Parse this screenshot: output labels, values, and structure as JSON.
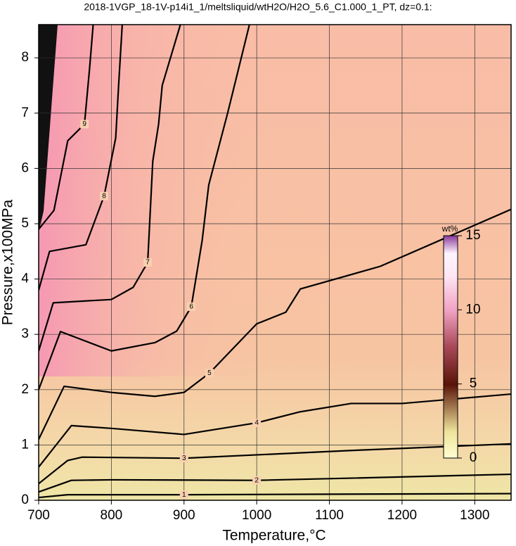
{
  "chart_data": {
    "type": "contour",
    "title": "2018-1VGP_18-1V-p14i1_1/meltsliquid/wtH2O/H2O_5.6_C1.000_1_PT, dz=0.1:",
    "x_label": "Temperature,°C",
    "y_label": "Pressure,x100MPa",
    "xlim": [
      700,
      1350
    ],
    "ylim": [
      0,
      8.6
    ],
    "xticks": [
      700,
      800,
      900,
      1000,
      1100,
      1200,
      1300
    ],
    "yticks": [
      0,
      1,
      2,
      3,
      4,
      5,
      6,
      7,
      8
    ],
    "grid": true,
    "line_color": "#000000",
    "contours": [
      {
        "level": 1,
        "T": [
          700,
          740,
          900,
          1100,
          1350
        ],
        "P": [
          0.05,
          0.1,
          0.1,
          0.11,
          0.12
        ]
      },
      {
        "level": 2,
        "T": [
          700,
          745,
          800,
          1000,
          1130,
          1350
        ],
        "P": [
          0.15,
          0.36,
          0.37,
          0.36,
          0.4,
          0.47
        ]
      },
      {
        "level": 3,
        "T": [
          700,
          740,
          760,
          900,
          1130,
          1350
        ],
        "P": [
          0.3,
          0.72,
          0.78,
          0.76,
          0.9,
          1.02
        ]
      },
      {
        "level": 4,
        "T": [
          700,
          745,
          800,
          900,
          1000,
          1060,
          1130,
          1200,
          1350
        ],
        "P": [
          0.6,
          1.35,
          1.3,
          1.19,
          1.4,
          1.6,
          1.75,
          1.75,
          1.92
        ]
      },
      {
        "level": 5,
        "T": [
          700,
          735,
          800,
          860,
          900,
          935,
          1000,
          1040,
          1060,
          1170,
          1350
        ],
        "P": [
          1.1,
          2.06,
          1.95,
          1.88,
          1.95,
          2.3,
          3.19,
          3.4,
          3.82,
          4.23,
          5.26
        ]
      },
      {
        "level": 6,
        "T": [
          700,
          730,
          800,
          860,
          890,
          910,
          925,
          934,
          960,
          990
        ],
        "P": [
          2.0,
          3.05,
          2.7,
          2.85,
          3.06,
          3.5,
          4.7,
          5.7,
          7.0,
          8.6
        ]
      },
      {
        "level": 7,
        "T": [
          700,
          720,
          800,
          830,
          850,
          857,
          865,
          870,
          895
        ],
        "P": [
          2.7,
          3.57,
          3.63,
          3.85,
          4.3,
          6.13,
          6.8,
          7.5,
          8.6
        ]
      },
      {
        "level": 8,
        "T": [
          700,
          715,
          765,
          790,
          806,
          810,
          815
        ],
        "P": [
          3.8,
          4.5,
          4.62,
          5.5,
          6.55,
          7.5,
          8.6
        ]
      },
      {
        "level": 9,
        "T": [
          700,
          721,
          740,
          763,
          770,
          775
        ],
        "P": [
          4.9,
          5.24,
          6.5,
          6.8,
          7.8,
          8.6
        ]
      }
    ],
    "colorbar": {
      "label": "wt%",
      "lim": [
        0,
        15
      ],
      "ticks": [
        0,
        5,
        10,
        15
      ]
    }
  }
}
